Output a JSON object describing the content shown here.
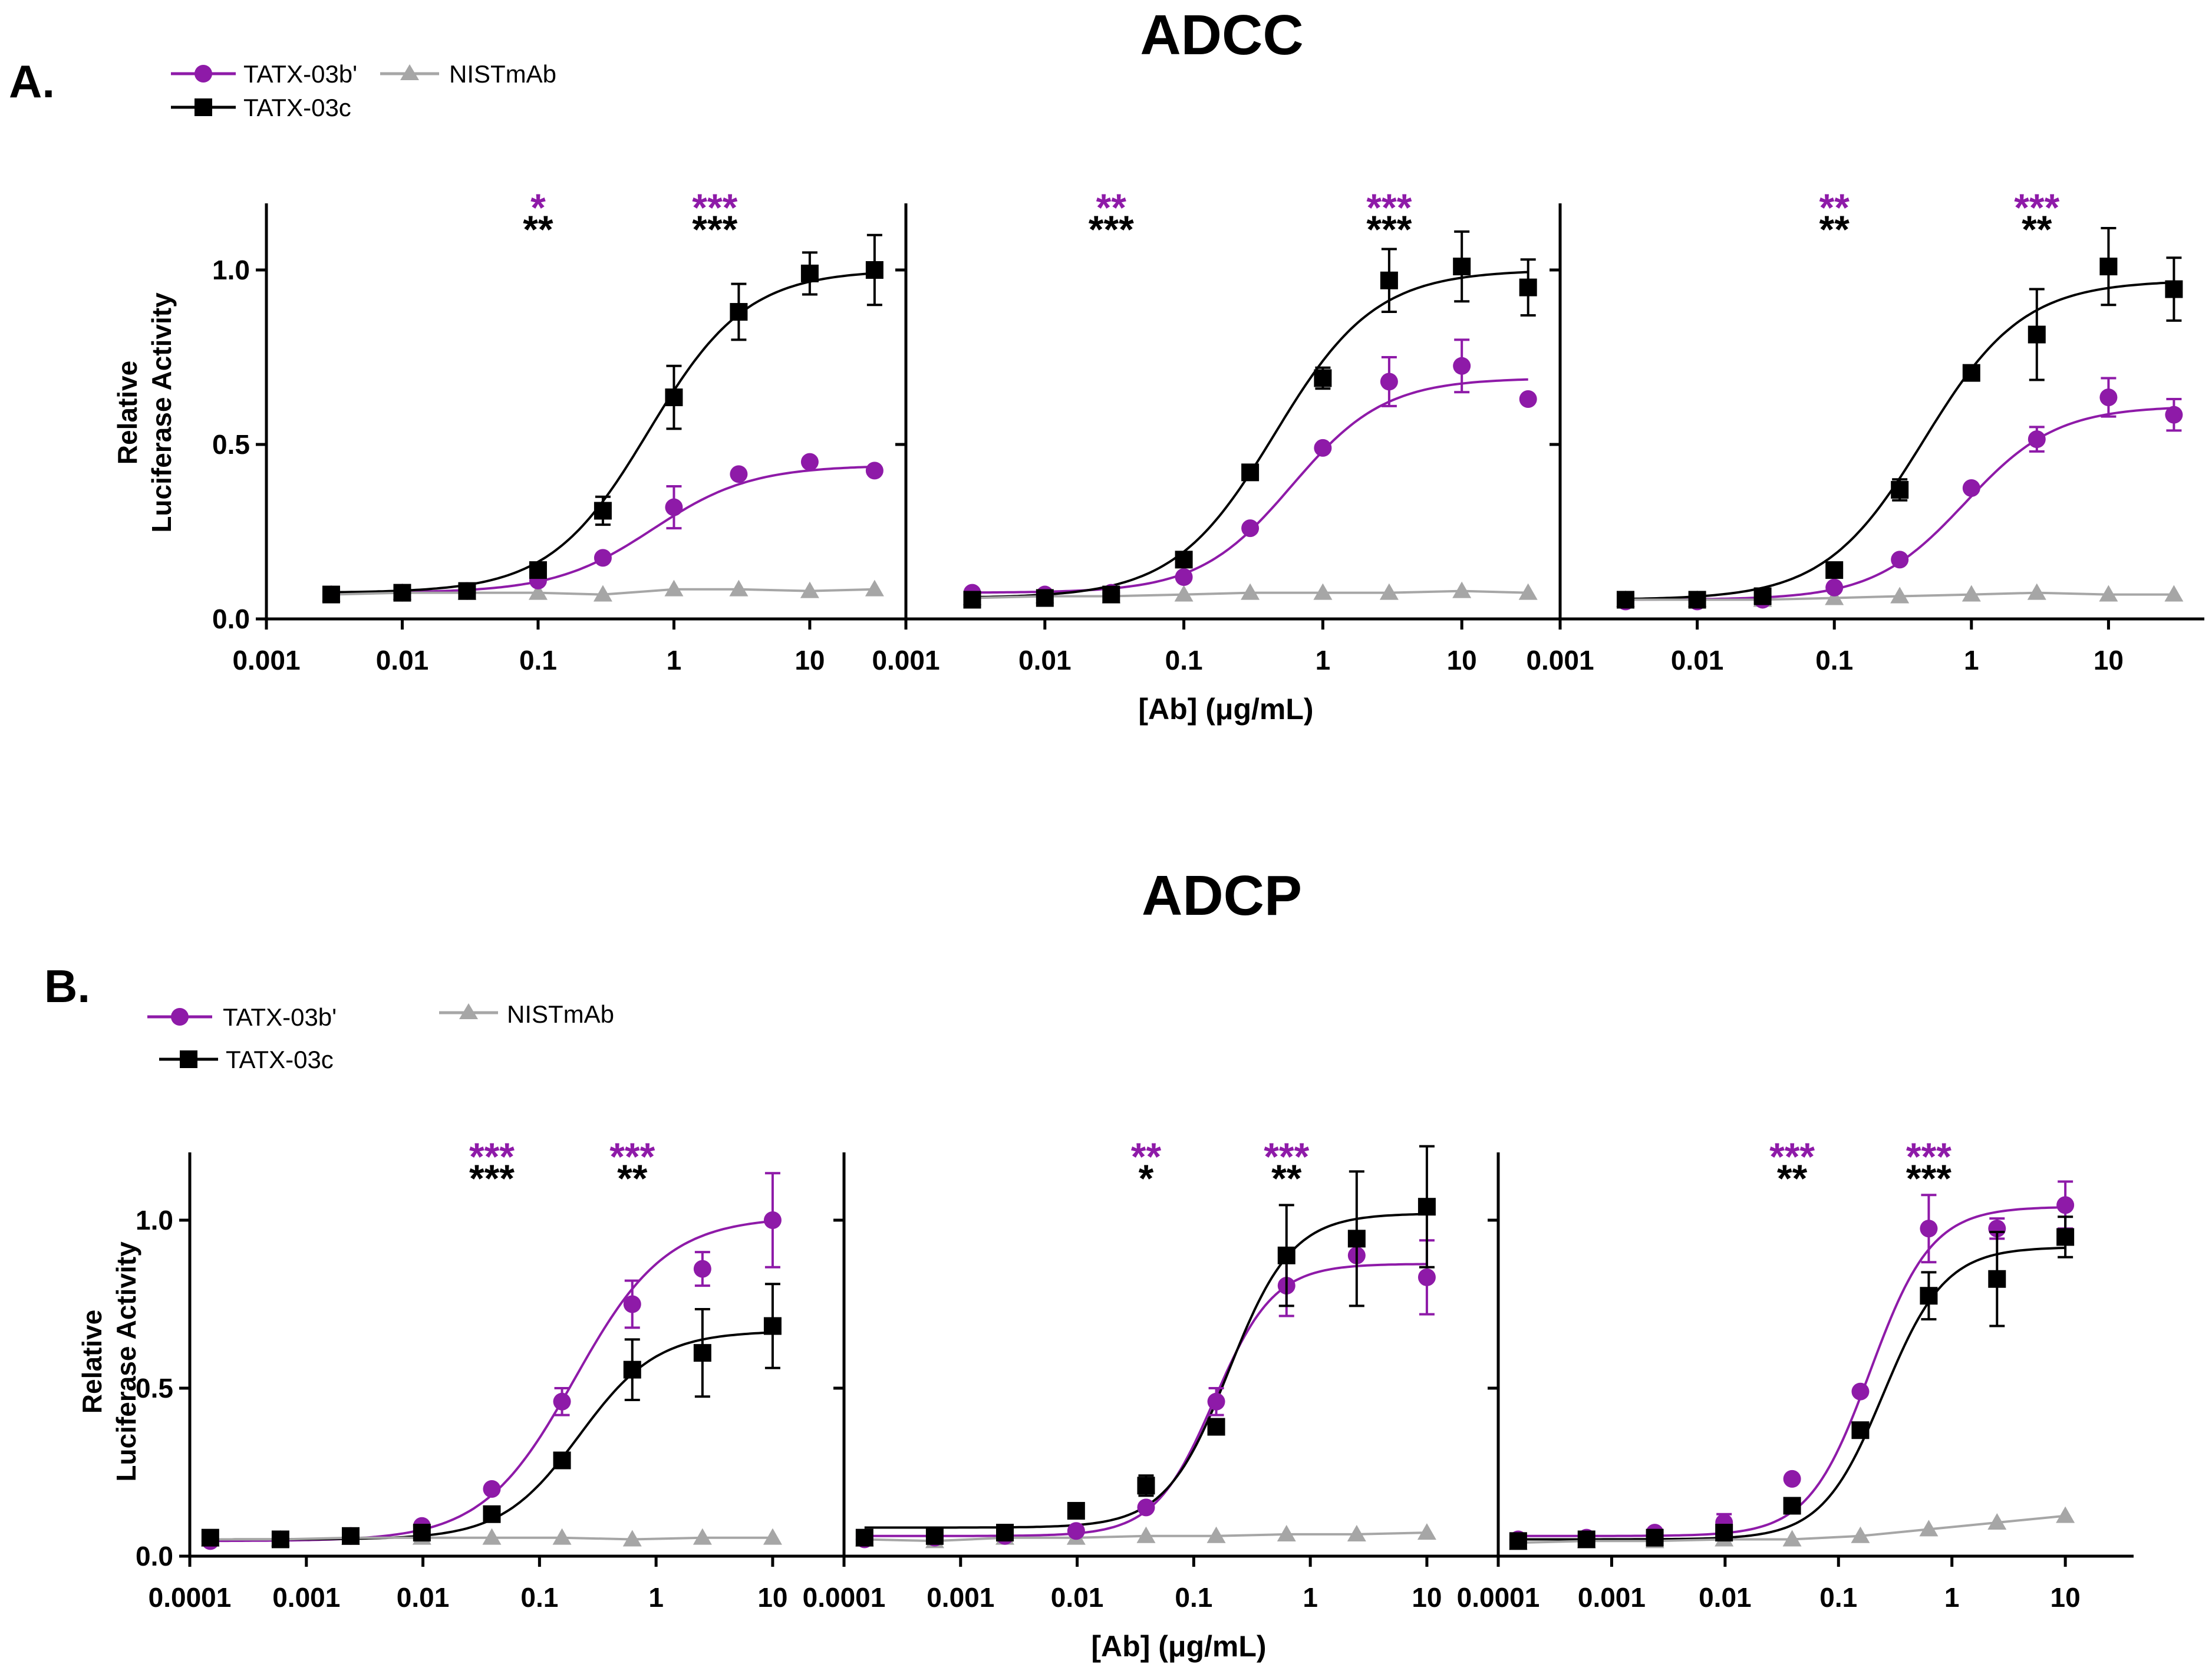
{
  "colors": {
    "purple": "#8e1aa8",
    "black": "#000000",
    "gray": "#a6a6a6"
  },
  "legend": {
    "s1": "TATX-03b'",
    "s2": "TATX-03c",
    "s3": "NISTmAb"
  },
  "xlabel": "[Ab] (μg/mL)",
  "ylabel": [
    "Relative",
    "Luciferase Activity"
  ],
  "chart_data": [
    {
      "panel": "A",
      "panel_label": "A.",
      "title": "ADCC",
      "type": "scatter",
      "x_scale": "log",
      "xlim": [
        0.001,
        50
      ],
      "ylim": [
        0,
        1.2
      ],
      "x_ticks": [
        0.001,
        0.01,
        0.1,
        1,
        10
      ],
      "x_tick_labels": [
        "0.001",
        "0.01",
        "0.1",
        "1",
        "10"
      ],
      "y_ticks": [
        0,
        0.5,
        1.0
      ],
      "y_tick_labels": [
        "0.0",
        "0.5",
        "1.0"
      ],
      "x": [
        0.003,
        0.01,
        0.03,
        0.1,
        0.3,
        1,
        3,
        10,
        30
      ],
      "subplots": [
        {
          "series": [
            {
              "name": "TATX-03b'",
              "values": [
                0.07,
                0.075,
                0.08,
                0.11,
                0.175,
                0.32,
                0.415,
                0.45,
                0.425
              ],
              "errors": [
                0,
                0,
                0,
                0,
                0,
                0.06,
                0,
                0,
                0
              ],
              "fit": {
                "bottom": 0.075,
                "top": 0.44,
                "ec50": 0.7,
                "hill": 1.2
              }
            },
            {
              "name": "TATX-03c",
              "values": [
                0.07,
                0.075,
                0.08,
                0.14,
                0.31,
                0.635,
                0.88,
                0.99,
                1.0
              ],
              "errors": [
                0,
                0,
                0,
                0,
                0.04,
                0.09,
                0.08,
                0.06,
                0.1
              ],
              "fit": {
                "bottom": 0.075,
                "top": 1.0,
                "ec50": 0.65,
                "hill": 1.2
              }
            },
            {
              "name": "NISTmAb",
              "values": [
                0.07,
                0.075,
                0.075,
                0.075,
                0.07,
                0.085,
                0.085,
                0.08,
                0.085
              ],
              "errors": [
                0,
                0,
                0,
                0,
                0,
                0,
                0,
                0,
                0
              ],
              "fit": null
            }
          ],
          "annotations": [
            {
              "x": 0.1,
              "purple": "*",
              "black": "**"
            },
            {
              "x": 2,
              "purple": "***",
              "black": "***"
            }
          ]
        },
        {
          "series": [
            {
              "name": "TATX-03b'",
              "values": [
                0.075,
                0.07,
                0.075,
                0.12,
                0.26,
                0.49,
                0.68,
                0.725,
                0.63
              ],
              "errors": [
                0,
                0,
                0,
                0,
                0,
                0,
                0.07,
                0.075,
                0
              ],
              "fit": {
                "bottom": 0.075,
                "top": 0.69,
                "ec50": 0.6,
                "hill": 1.3
              }
            },
            {
              "name": "TATX-03c",
              "values": [
                0.055,
                0.06,
                0.07,
                0.17,
                0.42,
                0.69,
                0.97,
                1.01,
                0.95
              ],
              "errors": [
                0,
                0,
                0,
                0,
                0,
                0.03,
                0.09,
                0.1,
                0.08
              ],
              "fit": {
                "bottom": 0.06,
                "top": 1.0,
                "ec50": 0.45,
                "hill": 1.2
              }
            },
            {
              "name": "NISTmAb",
              "values": [
                0.06,
                0.065,
                0.065,
                0.07,
                0.075,
                0.075,
                0.075,
                0.08,
                0.075
              ],
              "errors": [
                0,
                0,
                0,
                0,
                0,
                0,
                0,
                0,
                0
              ],
              "fit": null
            }
          ],
          "annotations": [
            {
              "x": 0.03,
              "purple": "**",
              "black": "***"
            },
            {
              "x": 3,
              "purple": "***",
              "black": "***"
            }
          ]
        },
        {
          "series": [
            {
              "name": "TATX-03b'",
              "values": [
                0.05,
                0.05,
                0.055,
                0.09,
                0.17,
                0.375,
                0.515,
                0.635,
                0.585
              ],
              "errors": [
                0,
                0,
                0,
                0,
                0,
                0,
                0.035,
                0.055,
                0.045
              ],
              "fit": {
                "bottom": 0.055,
                "top": 0.61,
                "ec50": 0.9,
                "hill": 1.3
              }
            },
            {
              "name": "TATX-03c",
              "values": [
                0.055,
                0.055,
                0.065,
                0.14,
                0.37,
                0.705,
                0.815,
                1.01,
                0.945
              ],
              "errors": [
                0,
                0,
                0,
                0,
                0.03,
                0,
                0.13,
                0.11,
                0.09
              ],
              "fit": {
                "bottom": 0.055,
                "top": 0.97,
                "ec50": 0.45,
                "hill": 1.2
              }
            },
            {
              "name": "NISTmAb",
              "values": [
                0.055,
                0.055,
                0.055,
                0.06,
                0.065,
                0.07,
                0.075,
                0.07,
                0.07
              ],
              "errors": [
                0,
                0,
                0,
                0,
                0,
                0,
                0,
                0,
                0
              ],
              "fit": null
            }
          ],
          "annotations": [
            {
              "x": 0.1,
              "purple": "**",
              "black": "**"
            },
            {
              "x": 3,
              "purple": "***",
              "black": "**"
            }
          ]
        }
      ]
    },
    {
      "panel": "B",
      "panel_label": "B.",
      "title": "ADCP",
      "type": "scatter",
      "x_scale": "log",
      "xlim": [
        0.0001,
        40
      ],
      "ylim": [
        0,
        1.2
      ],
      "x_ticks": [
        0.0001,
        0.001,
        0.01,
        0.1,
        1,
        10
      ],
      "x_tick_labels": [
        "0.0001",
        "0.001",
        "0.01",
        "0.1",
        "1",
        "10"
      ],
      "y_ticks": [
        0,
        0.5,
        1.0
      ],
      "y_tick_labels": [
        "0.0",
        "0.5",
        "1.0"
      ],
      "x": [
        0.00015,
        0.0006,
        0.0024,
        0.0098,
        0.039,
        0.156,
        0.625,
        2.5,
        10
      ],
      "subplots": [
        {
          "series": [
            {
              "name": "TATX-03b'",
              "values": [
                0.045,
                0.05,
                0.06,
                0.09,
                0.2,
                0.46,
                0.75,
                0.855,
                1.0
              ],
              "errors": [
                0,
                0,
                0,
                0,
                0,
                0.04,
                0.07,
                0.05,
                0.14
              ],
              "fit": {
                "bottom": 0.045,
                "top": 1.01,
                "ec50": 0.2,
                "hill": 1.1
              }
            },
            {
              "name": "TATX-03c",
              "values": [
                0.055,
                0.05,
                0.06,
                0.07,
                0.125,
                0.285,
                0.555,
                0.605,
                0.685
              ],
              "errors": [
                0,
                0,
                0,
                0,
                0,
                0,
                0.09,
                0.13,
                0.125
              ],
              "fit": {
                "bottom": 0.05,
                "top": 0.67,
                "ec50": 0.22,
                "hill": 1.3
              }
            },
            {
              "name": "NISTmAb",
              "values": [
                0.05,
                0.05,
                0.055,
                0.055,
                0.055,
                0.055,
                0.05,
                0.055,
                0.055
              ],
              "errors": [
                0,
                0,
                0,
                0,
                0,
                0,
                0,
                0,
                0
              ],
              "fit": null
            }
          ],
          "annotations": [
            {
              "x": 0.039,
              "purple": "***",
              "black": "***"
            },
            {
              "x": 0.625,
              "purple": "***",
              "black": "**"
            }
          ]
        },
        {
          "series": [
            {
              "name": "TATX-03b'",
              "values": [
                0.05,
                0.055,
                0.06,
                0.075,
                0.145,
                0.46,
                0.805,
                0.895,
                0.83
              ],
              "errors": [
                0,
                0,
                0,
                0,
                0,
                0.04,
                0.09,
                0,
                0.11
              ],
              "fit": {
                "bottom": 0.06,
                "top": 0.87,
                "ec50": 0.15,
                "hill": 1.7
              }
            },
            {
              "name": "TATX-03c",
              "values": [
                0.055,
                0.06,
                0.07,
                0.135,
                0.21,
                0.385,
                0.895,
                0.945,
                1.04
              ],
              "errors": [
                0,
                0,
                0,
                0,
                0.03,
                0,
                0.15,
                0.2,
                0.18
              ],
              "fit": {
                "bottom": 0.085,
                "top": 1.02,
                "ec50": 0.2,
                "hill": 1.6
              }
            },
            {
              "name": "NISTmAb",
              "values": [
                0.05,
                0.045,
                0.055,
                0.055,
                0.06,
                0.06,
                0.065,
                0.065,
                0.07
              ],
              "errors": [
                0,
                0,
                0,
                0,
                0,
                0,
                0,
                0,
                0
              ],
              "fit": null
            }
          ],
          "annotations": [
            {
              "x": 0.039,
              "purple": "**",
              "black": "*"
            },
            {
              "x": 0.625,
              "purple": "***",
              "black": "**"
            }
          ]
        },
        {
          "series": [
            {
              "name": "TATX-03b'",
              "values": [
                0.05,
                0.055,
                0.07,
                0.1,
                0.23,
                0.49,
                0.975,
                0.975,
                1.045
              ],
              "errors": [
                0,
                0,
                0,
                0.025,
                0,
                0,
                0.1,
                0.03,
                0.07
              ],
              "fit": {
                "bottom": 0.06,
                "top": 1.04,
                "ec50": 0.19,
                "hill": 1.6
              }
            },
            {
              "name": "TATX-03c",
              "values": [
                0.045,
                0.05,
                0.055,
                0.07,
                0.15,
                0.375,
                0.775,
                0.825,
                0.95
              ],
              "errors": [
                0,
                0,
                0,
                0,
                0,
                0,
                0.07,
                0.14,
                0.06
              ],
              "fit": {
                "bottom": 0.05,
                "top": 0.92,
                "ec50": 0.25,
                "hill": 1.6
              }
            },
            {
              "name": "NISTmAb",
              "values": [
                0.04,
                0.045,
                0.045,
                0.05,
                0.05,
                0.06,
                0.08,
                0.1,
                0.12
              ],
              "errors": [
                0,
                0,
                0,
                0,
                0,
                0,
                0,
                0,
                0
              ],
              "fit": null
            }
          ],
          "annotations": [
            {
              "x": 0.039,
              "purple": "***",
              "black": "**"
            },
            {
              "x": 0.625,
              "purple": "***",
              "black": "***"
            }
          ]
        }
      ]
    }
  ]
}
